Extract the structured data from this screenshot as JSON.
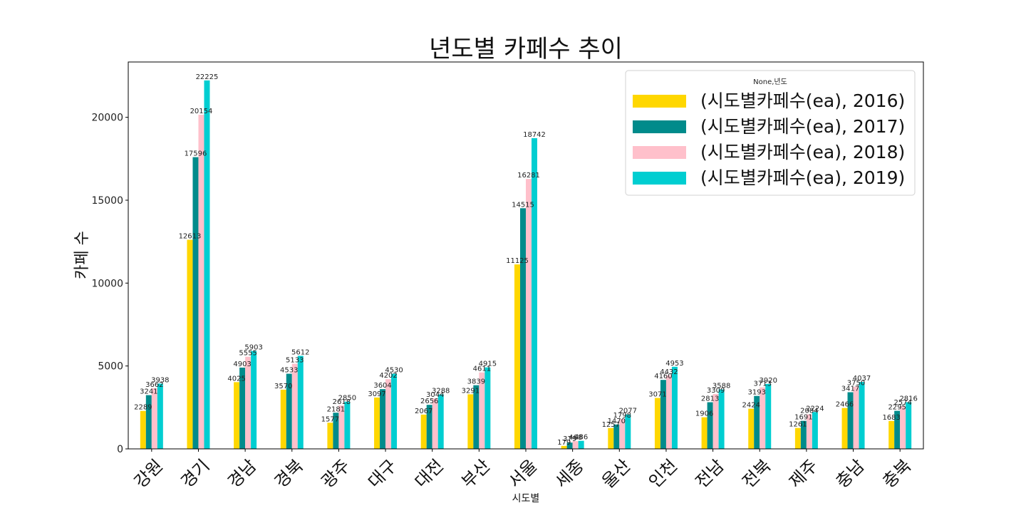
{
  "chart_data": {
    "type": "bar",
    "title": "년도별 카페수 추이",
    "xlabel": "시도별",
    "ylabel": "카페 수",
    "ylim": [
      0,
      23337
    ],
    "yticks": [
      0,
      5000,
      10000,
      15000,
      20000
    ],
    "legend_title": "None,년도",
    "legend_position": "top-right",
    "grid": false,
    "categories": [
      "강원",
      "경기",
      "경남",
      "경북",
      "광주",
      "대구",
      "대전",
      "부산",
      "서울",
      "세종",
      "울산",
      "인천",
      "전남",
      "전북",
      "제주",
      "충남",
      "충북"
    ],
    "series": [
      {
        "name": "(시도별카페수(ea), 2016)",
        "color": "#ffd700",
        "values": [
          2289,
          12613,
          4025,
          3570,
          1577,
          3097,
          2067,
          3291,
          11125,
          179,
          1257,
          3071,
          1906,
          2424,
          1261,
          2466,
          1683
        ]
      },
      {
        "name": "(시도별카페수(ea), 2017)",
        "color": "#008b8b",
        "values": [
          3241,
          17596,
          4903,
          4533,
          2181,
          3604,
          2656,
          3839,
          14515,
          379,
          1470,
          4160,
          2813,
          3193,
          1691,
          3417,
          2295
        ]
      },
      {
        "name": "(시도별카페수(ea), 2018)",
        "color": "#ffc0cb",
        "values": [
          3662,
          20154,
          5555,
          5133,
          2618,
          4202,
          3044,
          4611,
          16281,
          468,
          1798,
          4432,
          3309,
          3713,
          2084,
          3750,
          2574
        ]
      },
      {
        "name": "(시도별카페수(ea), 2019)",
        "color": "#00ced1",
        "values": [
          3938,
          22225,
          5903,
          5612,
          2850,
          4530,
          3288,
          4915,
          18742,
          486,
          2077,
          4953,
          3588,
          3920,
          2224,
          4037,
          2816
        ]
      }
    ]
  }
}
